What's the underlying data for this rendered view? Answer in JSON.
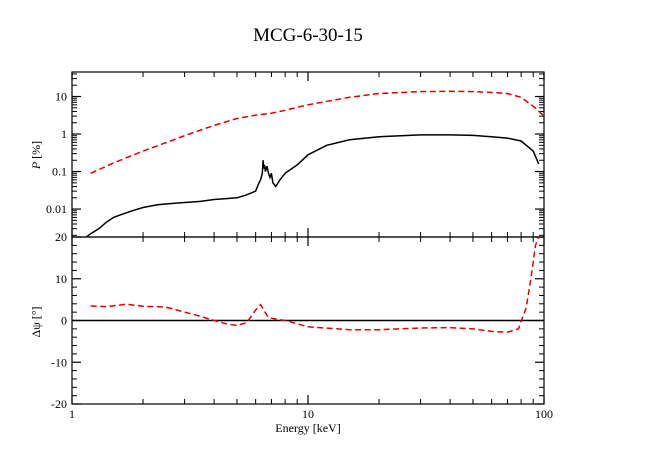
{
  "chart_data": [
    {
      "type": "line",
      "title": "MCG-6-30-15",
      "xlabel": "Energy [keV]",
      "ylabel": "P [%]",
      "xscale": "log",
      "yscale": "log",
      "xlim": [
        1,
        100
      ],
      "ylim": [
        0.0018,
        45
      ],
      "ytick_labels": [
        "0.01",
        "0.1",
        "1",
        "10"
      ],
      "yticks": [
        0.01,
        0.1,
        1,
        10
      ],
      "series": [
        {
          "name": "P (black, solid)",
          "color": "#000000",
          "style": "solid",
          "x": [
            1.15,
            1.2,
            1.3,
            1.4,
            1.5,
            1.6,
            1.8,
            2.0,
            2.3,
            2.6,
            3.0,
            3.5,
            4.0,
            4.5,
            5.0,
            5.5,
            6.0,
            6.2,
            6.3,
            6.4,
            6.45,
            6.5,
            6.55,
            6.6,
            6.7,
            6.8,
            6.9,
            7.0,
            7.1,
            7.3,
            7.6,
            8.0,
            9.0,
            10.0,
            12.0,
            15.0,
            20.0,
            30.0,
            40.0,
            50.0,
            60.0,
            70.0,
            80.0,
            90.0,
            95.0
          ],
          "y": [
            0.0018,
            0.0022,
            0.003,
            0.0045,
            0.006,
            0.007,
            0.009,
            0.011,
            0.013,
            0.014,
            0.015,
            0.016,
            0.018,
            0.019,
            0.02,
            0.024,
            0.03,
            0.05,
            0.06,
            0.09,
            0.2,
            0.12,
            0.15,
            0.1,
            0.14,
            0.09,
            0.07,
            0.09,
            0.05,
            0.04,
            0.06,
            0.09,
            0.15,
            0.28,
            0.5,
            0.7,
            0.85,
            0.95,
            0.95,
            0.92,
            0.85,
            0.78,
            0.65,
            0.35,
            0.16
          ]
        },
        {
          "name": "P (red, dashed)",
          "color": "#e00000",
          "style": "dashed",
          "x": [
            1.2,
            1.5,
            2.0,
            3.0,
            4.0,
            5.0,
            6.0,
            6.5,
            7.0,
            8.0,
            10.0,
            15.0,
            20.0,
            30.0,
            40.0,
            50.0,
            60.0,
            70.0,
            80.0,
            90.0,
            100.0
          ],
          "y": [
            0.09,
            0.17,
            0.35,
            0.9,
            1.7,
            2.6,
            3.2,
            3.4,
            3.6,
            4.3,
            6.0,
            9.5,
            12.0,
            13.5,
            13.8,
            13.5,
            12.8,
            12.0,
            9.5,
            5.5,
            3.0
          ]
        }
      ]
    },
    {
      "type": "line",
      "xlabel": "Energy [keV]",
      "ylabel": "Δψ [°]",
      "xscale": "log",
      "xlim": [
        1,
        100
      ],
      "ylim": [
        -20,
        20
      ],
      "xtick_labels": [
        "1",
        "10",
        "100"
      ],
      "xticks": [
        1,
        10,
        100
      ],
      "ytick_labels": [
        "-20",
        "-10",
        "0",
        "10",
        "20"
      ],
      "yticks": [
        -20,
        -10,
        0,
        10,
        20
      ],
      "series": [
        {
          "name": "zero line",
          "color": "#000000",
          "style": "solid",
          "x": [
            1,
            100
          ],
          "y": [
            0,
            0
          ]
        },
        {
          "name": "Δψ (red, dashed)",
          "color": "#e00000",
          "style": "dashed",
          "x": [
            1.2,
            1.4,
            1.7,
            2.0,
            2.5,
            3.0,
            3.5,
            4.0,
            4.5,
            5.0,
            5.5,
            6.0,
            6.3,
            6.5,
            6.8,
            7.2,
            8.0,
            10.0,
            15.0,
            20.0,
            30.0,
            40.0,
            50.0,
            60.0,
            70.0,
            78.0,
            84.0,
            88.0,
            92.0,
            95.0
          ],
          "y": [
            3.5,
            3.3,
            3.9,
            3.4,
            3.2,
            2.0,
            1.0,
            0.0,
            -0.8,
            -1.2,
            -0.5,
            2.5,
            3.8,
            2.5,
            0.7,
            0.4,
            0.0,
            -1.5,
            -2.2,
            -2.2,
            -1.8,
            -1.7,
            -2.0,
            -2.6,
            -2.8,
            -2.0,
            3.0,
            10.0,
            18.0,
            20.0
          ]
        }
      ]
    }
  ]
}
